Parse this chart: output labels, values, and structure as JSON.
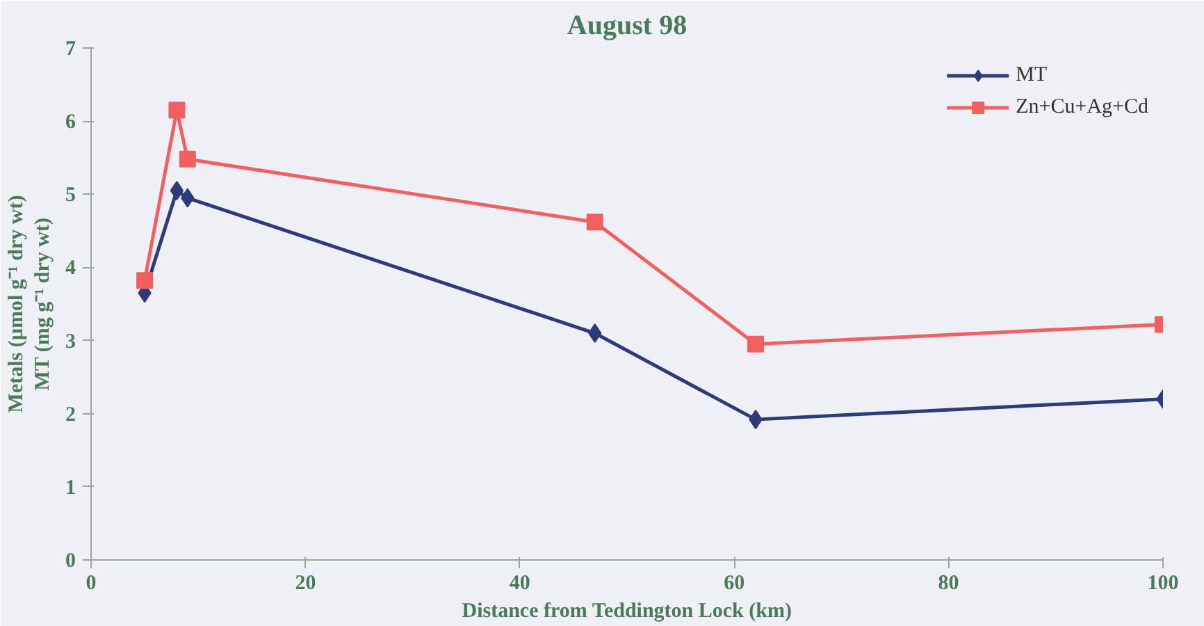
{
  "chart_data": {
    "type": "line",
    "title": "August 98",
    "xlabel": "Distance from Teddington Lock (km)",
    "ylabel": "Metals (µmol g⁻¹ dry wt)\nMT (mg g⁻¹ dry wt)",
    "xlim": [
      0,
      100
    ],
    "xticks": [
      0,
      20,
      40,
      60,
      80,
      100
    ],
    "ylim": [
      0,
      7
    ],
    "yticks": [
      0,
      1,
      2,
      3,
      4,
      5,
      6,
      7
    ],
    "grid": false,
    "legend": "top right",
    "series": [
      {
        "name": "MT",
        "color": "#2e3a7a",
        "marker": "diamond",
        "x": [
          5,
          8,
          9,
          47,
          62,
          100
        ],
        "values": [
          3.65,
          5.05,
          4.95,
          3.1,
          1.92,
          2.2
        ]
      },
      {
        "name": "Zn+Cu+Ag+Cd",
        "color": "#f06060",
        "marker": "square",
        "x": [
          5,
          8,
          9,
          47,
          62,
          100
        ],
        "values": [
          3.82,
          6.15,
          5.48,
          4.62,
          2.95,
          3.22
        ]
      }
    ]
  }
}
